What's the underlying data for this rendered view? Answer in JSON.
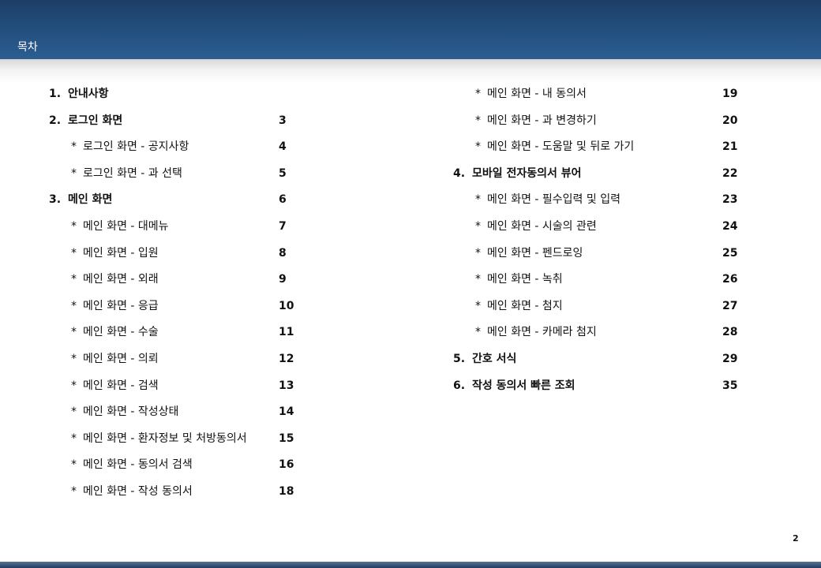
{
  "header": {
    "title": "목차"
  },
  "page_number": "2",
  "toc_left": [
    {
      "num": "1.",
      "label": "안내사항",
      "page": ""
    },
    {
      "num": "2.",
      "label": "로그인 화면",
      "page": "3"
    },
    {
      "label": "로그인 화면 - 공지사항",
      "page": "4"
    },
    {
      "label": "로그인 화면 - 과 선택",
      "page": "5"
    },
    {
      "num": "3.",
      "label": "메인 화면",
      "page": "6"
    },
    {
      "label": "메인 화면 - 대메뉴",
      "page": "7"
    },
    {
      "label": "메인 화면 - 입원",
      "page": "8"
    },
    {
      "label": "메인 화면 - 외래",
      "page": "9"
    },
    {
      "label": "메인 화면 - 응급",
      "page": "10"
    },
    {
      "label": "메인 화면 - 수술",
      "page": "11"
    },
    {
      "label": "메인 화면 - 의뢰",
      "page": "12"
    },
    {
      "label": "메인 화면 - 검색",
      "page": "13"
    },
    {
      "label": "메인 화면 - 작성상태",
      "page": "14"
    },
    {
      "label": "메인 화면 - 환자정보 및 처방동의서",
      "page": "15"
    },
    {
      "label": "메인 화면 - 동의서 검색",
      "page": "16"
    },
    {
      "label": "메인 화면 - 작성 동의서",
      "page": "18"
    }
  ],
  "toc_right": [
    {
      "label": "메인 화면 - 내 동의서",
      "page": "19"
    },
    {
      "label": "메인 화면 - 과 변경하기",
      "page": "20"
    },
    {
      "label": "메인 화면 - 도움말 및 뒤로 가기",
      "page": "21"
    },
    {
      "num": "4.",
      "label": "모바일 전자동의서 뷰어",
      "page": "22"
    },
    {
      "label": "메인 화면 - 필수입력 및 입력",
      "page": "23"
    },
    {
      "label": "메인 화면 - 시술의 관련",
      "page": "24"
    },
    {
      "label": "메인 화면 - 펜드로잉",
      "page": "25"
    },
    {
      "label": "메인 화면 - 녹취",
      "page": "26"
    },
    {
      "label": "메인 화면 - 첨지",
      "page": "27"
    },
    {
      "label": "메인 화면 - 카메라 첨지",
      "page": "28"
    },
    {
      "num": "5.",
      "label": "간호 서식",
      "page": "29"
    },
    {
      "num": "6.",
      "label": "작성 동의서 빠른 조회",
      "page": "35"
    }
  ],
  "sub_marker": "*"
}
